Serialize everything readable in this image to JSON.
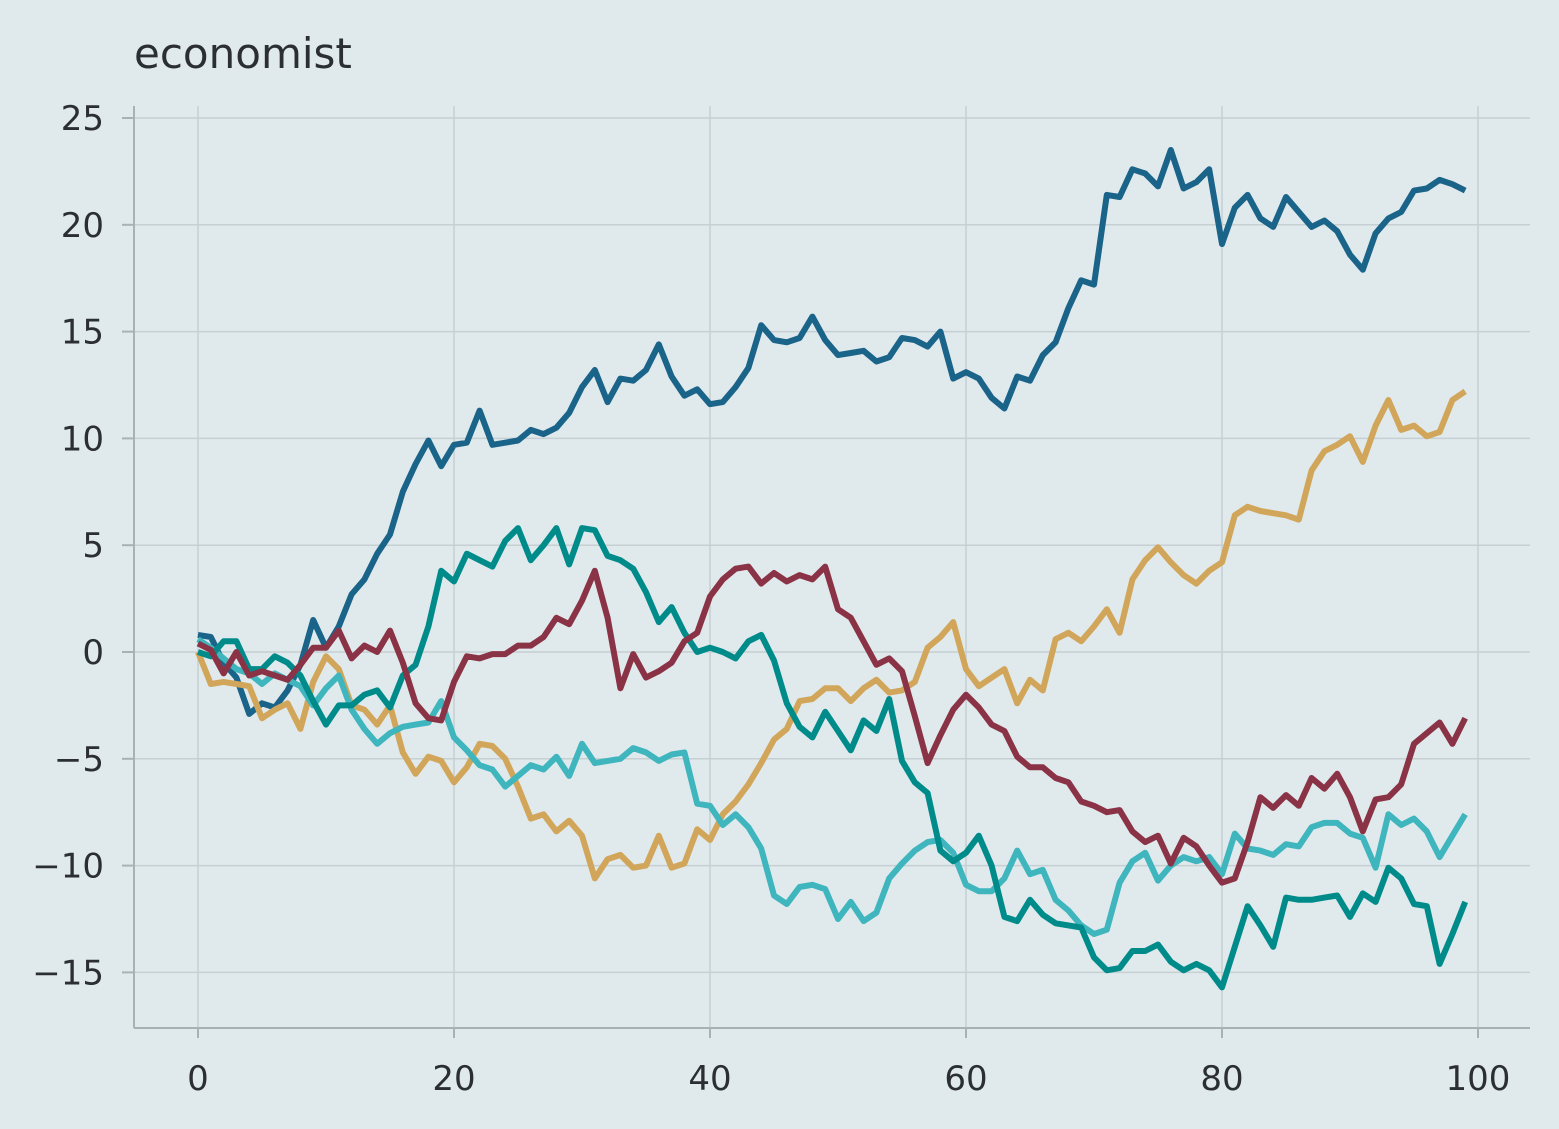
{
  "chart_data": {
    "type": "line",
    "title": "economist",
    "xlabel": "",
    "ylabel": "",
    "xlim": [
      -5,
      102
    ],
    "ylim": [
      -18,
      25.5
    ],
    "grid": true,
    "legend": "none",
    "x_ticks": [
      0,
      20,
      40,
      60,
      80,
      100
    ],
    "y_ticks": [
      25,
      20,
      15,
      10,
      5,
      0,
      -5,
      -10,
      -15
    ],
    "x_tick_labels": [
      "0",
      "20",
      "40",
      "60",
      "80",
      "100"
    ],
    "y_tick_labels": [
      "25",
      "20",
      "15",
      "10",
      "5",
      "0",
      "−5",
      "−10",
      "−15"
    ],
    "x": [
      0,
      1,
      2,
      3,
      4,
      5,
      6,
      7,
      8,
      9,
      10,
      11,
      12,
      13,
      14,
      15,
      16,
      17,
      18,
      19,
      20,
      21,
      22,
      23,
      24,
      25,
      26,
      27,
      28,
      29,
      30,
      31,
      32,
      33,
      34,
      35,
      36,
      37,
      38,
      39,
      40,
      41,
      42,
      43,
      44,
      45,
      46,
      47,
      48,
      49,
      50,
      51,
      52,
      53,
      54,
      55,
      56,
      57,
      58,
      59,
      60,
      61,
      62,
      63,
      64,
      65,
      66,
      67,
      68,
      69,
      70,
      71,
      72,
      73,
      74,
      75,
      76,
      77,
      78,
      79,
      80,
      81,
      82,
      83,
      84,
      85,
      86,
      87,
      88,
      89,
      90,
      91,
      92,
      93,
      94,
      95,
      96,
      97,
      98,
      99
    ],
    "series": [
      {
        "color": "#1a6389",
        "values": [
          0.8,
          0.7,
          -0.5,
          -1.2,
          -2.9,
          -2.4,
          -2.6,
          -1.8,
          -0.6,
          1.5,
          0.2,
          1.2,
          2.7,
          3.4,
          4.6,
          5.5,
          7.5,
          8.8,
          9.9,
          8.7,
          9.7,
          9.8,
          11.3,
          9.7,
          9.8,
          9.9,
          10.4,
          10.2,
          10.5,
          11.2,
          12.4,
          13.2,
          11.7,
          12.8,
          12.7,
          13.2,
          14.4,
          12.9,
          12.0,
          12.3,
          11.6,
          11.7,
          12.4,
          13.3,
          15.3,
          14.6,
          14.5,
          14.7,
          15.7,
          14.6,
          13.9,
          14.0,
          14.1,
          13.6,
          13.8,
          14.7,
          14.6,
          14.3,
          15.0,
          12.8,
          13.1,
          12.8,
          11.9,
          11.4,
          12.9,
          12.7,
          13.9,
          14.5,
          16.1,
          17.4,
          17.2,
          21.4,
          21.3,
          22.6,
          22.4,
          21.8,
          23.5,
          21.7,
          22.0,
          22.6,
          19.1,
          20.8,
          21.4,
          20.3,
          19.9,
          21.3,
          20.6,
          19.9,
          20.2,
          19.7,
          18.6,
          17.9,
          19.6,
          20.3,
          20.6,
          21.6,
          21.7,
          22.1,
          21.9,
          21.6
        ]
      },
      {
        "color": "#d2a65a",
        "values": [
          0.0,
          -1.5,
          -1.4,
          -1.5,
          -1.6,
          -3.1,
          -2.7,
          -2.4,
          -3.6,
          -1.4,
          -0.2,
          -0.8,
          -2.5,
          -2.7,
          -3.4,
          -2.5,
          -4.7,
          -5.7,
          -4.9,
          -5.1,
          -6.1,
          -5.4,
          -4.3,
          -4.4,
          -5.0,
          -6.3,
          -7.8,
          -7.6,
          -8.4,
          -7.9,
          -8.6,
          -10.6,
          -9.7,
          -9.5,
          -10.1,
          -10.0,
          -8.6,
          -10.1,
          -9.9,
          -8.3,
          -8.8,
          -7.6,
          -7.0,
          -6.2,
          -5.2,
          -4.1,
          -3.6,
          -2.3,
          -2.2,
          -1.7,
          -1.7,
          -2.3,
          -1.7,
          -1.3,
          -1.9,
          -1.8,
          -1.4,
          0.2,
          0.7,
          1.4,
          -0.8,
          -1.6,
          -1.2,
          -0.8,
          -2.4,
          -1.3,
          -1.8,
          0.6,
          0.9,
          0.5,
          1.2,
          2.0,
          0.9,
          3.4,
          4.3,
          4.9,
          4.2,
          3.6,
          3.2,
          3.8,
          4.2,
          6.4,
          6.8,
          6.6,
          6.5,
          6.4,
          6.2,
          8.5,
          9.4,
          9.7,
          10.1,
          8.9,
          10.6,
          11.8,
          10.4,
          10.6,
          10.1,
          10.3,
          11.8,
          12.2
        ]
      },
      {
        "color": "#3fb5be",
        "values": [
          0.6,
          0.2,
          -0.3,
          -0.8,
          -1.0,
          -1.5,
          -1.0,
          -1.3,
          -1.6,
          -2.5,
          -1.7,
          -1.1,
          -2.7,
          -3.6,
          -4.3,
          -3.8,
          -3.5,
          -3.4,
          -3.3,
          -2.3,
          -4.0,
          -4.6,
          -5.3,
          -5.5,
          -6.3,
          -5.8,
          -5.3,
          -5.5,
          -4.9,
          -5.8,
          -4.3,
          -5.2,
          -5.1,
          -5.0,
          -4.5,
          -4.7,
          -5.1,
          -4.8,
          -4.7,
          -7.1,
          -7.2,
          -8.1,
          -7.6,
          -8.2,
          -9.2,
          -11.4,
          -11.8,
          -11.0,
          -10.9,
          -11.1,
          -12.5,
          -11.7,
          -12.6,
          -12.2,
          -10.6,
          -9.9,
          -9.3,
          -8.9,
          -8.8,
          -9.4,
          -10.9,
          -11.2,
          -11.2,
          -10.6,
          -9.3,
          -10.4,
          -10.2,
          -11.6,
          -12.1,
          -12.8,
          -13.2,
          -13.0,
          -10.8,
          -9.8,
          -9.4,
          -10.7,
          -10.0,
          -9.6,
          -9.8,
          -9.6,
          -10.4,
          -8.5,
          -9.2,
          -9.3,
          -9.5,
          -9.0,
          -9.1,
          -8.2,
          -8.0,
          -8.0,
          -8.5,
          -8.7,
          -10.1,
          -7.6,
          -8.1,
          -7.8,
          -8.4,
          -9.6,
          -8.6,
          -7.6
        ]
      },
      {
        "color": "#008b8b",
        "values": [
          0.0,
          -0.2,
          0.5,
          0.5,
          -0.8,
          -0.8,
          -0.2,
          -0.5,
          -1.1,
          -2.3,
          -3.4,
          -2.5,
          -2.5,
          -2.0,
          -1.8,
          -2.6,
          -1.1,
          -0.6,
          1.2,
          3.8,
          3.3,
          4.6,
          4.3,
          4.0,
          5.2,
          5.8,
          4.3,
          5.0,
          5.8,
          4.1,
          5.8,
          5.7,
          4.5,
          4.3,
          3.9,
          2.8,
          1.4,
          2.1,
          0.9,
          0.0,
          0.2,
          0.0,
          -0.3,
          0.5,
          0.8,
          -0.4,
          -2.4,
          -3.5,
          -4.0,
          -2.8,
          -3.7,
          -4.6,
          -3.2,
          -3.7,
          -2.2,
          -5.1,
          -6.1,
          -6.6,
          -9.3,
          -9.8,
          -9.4,
          -8.6,
          -10.0,
          -12.4,
          -12.6,
          -11.6,
          -12.3,
          -12.7,
          -12.8,
          -12.9,
          -14.3,
          -14.9,
          -14.8,
          -14.0,
          -14.0,
          -13.7,
          -14.5,
          -14.9,
          -14.6,
          -14.9,
          -15.7,
          -13.8,
          -11.9,
          -12.8,
          -13.8,
          -11.5,
          -11.6,
          -11.6,
          -11.5,
          -11.4,
          -12.4,
          -11.3,
          -11.7,
          -10.1,
          -10.6,
          -11.8,
          -11.9,
          -14.6,
          -13.2,
          -11.7
        ]
      },
      {
        "color": "#8b3346",
        "values": [
          0.4,
          0.1,
          -1.0,
          0.0,
          -1.1,
          -0.9,
          -1.1,
          -1.3,
          -0.6,
          0.2,
          0.2,
          1.0,
          -0.3,
          0.3,
          0.0,
          1.0,
          -0.5,
          -2.4,
          -3.1,
          -3.2,
          -1.4,
          -0.2,
          -0.3,
          -0.1,
          -0.1,
          0.3,
          0.3,
          0.7,
          1.6,
          1.3,
          2.4,
          3.8,
          1.6,
          -1.7,
          -0.1,
          -1.2,
          -0.9,
          -0.5,
          0.5,
          0.9,
          2.6,
          3.4,
          3.9,
          4.0,
          3.2,
          3.7,
          3.3,
          3.6,
          3.4,
          4.0,
          2.0,
          1.6,
          0.5,
          -0.6,
          -0.3,
          -0.9,
          -3.0,
          -5.2,
          -3.9,
          -2.7,
          -2.0,
          -2.6,
          -3.4,
          -3.7,
          -4.9,
          -5.4,
          -5.4,
          -5.9,
          -6.1,
          -7.0,
          -7.2,
          -7.5,
          -7.4,
          -8.4,
          -8.9,
          -8.6,
          -9.9,
          -8.7,
          -9.1,
          -10.0,
          -10.8,
          -10.6,
          -8.9,
          -6.8,
          -7.3,
          -6.7,
          -7.2,
          -5.9,
          -6.4,
          -5.7,
          -6.8,
          -8.4,
          -6.9,
          -6.8,
          -6.2,
          -4.3,
          -3.8,
          -3.3,
          -4.3,
          -3.1
        ]
      }
    ]
  }
}
